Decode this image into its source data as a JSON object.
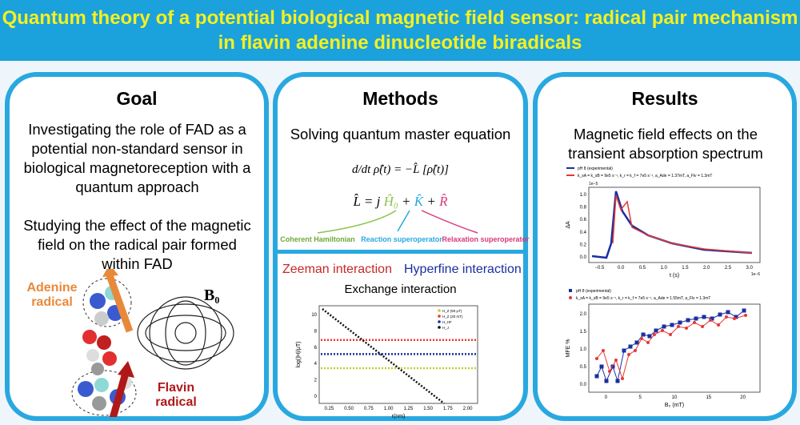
{
  "header": {
    "title": "Quantum theory of a potential biological magnetic field sensor: radical pair mechanism in flavin adenine dinucleotide biradicals"
  },
  "goal": {
    "heading": "Goal",
    "text1": "Investigating the role of FAD as a potential non-standard sensor in biological magnetoreception with a quantum approach",
    "text2": "Studying the effect of the magnetic field on the radical pair formed within FAD",
    "adenine": "Adenine radical",
    "flavin": "Flavin radical",
    "field": "B₀"
  },
  "methods": {
    "heading": "Methods",
    "text1": "Solving quantum master equation",
    "eq1": "d/dt ρ̂(t) = −L̂ [ρ̂(t)]",
    "eq2": [
      "L̂ = j ",
      "Ĥ₀",
      " + ",
      "K̂",
      " + ",
      "R̂"
    ],
    "labels": [
      "Coherent Hamiltonian",
      "Reaction superoperator",
      "Relaxation superoperator"
    ],
    "zeeman": "Zeeman interaction",
    "hyperfine": "Hyperfine interaction",
    "exchange": "Exchange interaction",
    "plot": {
      "ylabel": "log(|H|/μT)",
      "xlabel": "r(nm)",
      "xticks": [
        "0.25",
        "0.50",
        "0.75",
        "1.00",
        "1.25",
        "1.50",
        "1.75",
        "2.00"
      ],
      "yticks": [
        "0",
        "2",
        "4",
        "6",
        "8",
        "10"
      ],
      "legend": [
        "H_Z (50 μT)",
        "H_Z (20 mT)",
        "H_HF",
        "H_J"
      ]
    }
  },
  "results": {
    "heading": "Results",
    "text1": "Magnetic field effects on the transient absorption spectrum",
    "plot1": {
      "ylabel": "ΔA",
      "xlabel": "t (s)",
      "exponent": "1e−5",
      "xexponent": "1e−6",
      "xticks": [
        "−0.5",
        "0.0",
        "0.5",
        "1.0",
        "1.5",
        "2.0",
        "2.5",
        "3.0"
      ],
      "yticks": [
        "0.0",
        "0.2",
        "0.4",
        "0.6",
        "0.8",
        "1.0"
      ],
      "legend": [
        "pH 8 (experimental)",
        "k_sA = k_sB = 9e5 s⁻¹, k_r = k_f = 7e5 s⁻¹, a_Ade = 1.37mT, a_Flv = 1.3mT"
      ]
    },
    "plot2": {
      "ylabel": "MFE %",
      "xlabel": "B₀ (mT)",
      "xticks": [
        "0",
        "5",
        "10",
        "15",
        "20"
      ],
      "yticks": [
        "0.0",
        "0.5",
        "1.0",
        "1.5",
        "2.0"
      ],
      "legend": [
        "pH 8 (experimental)",
        "k_sA = k_sB = 9e5 s⁻¹, k_r = k_f = 7e5 s⁻¹, a_Ade = 1.55mT, a_Flv = 1.3mT"
      ]
    }
  }
}
